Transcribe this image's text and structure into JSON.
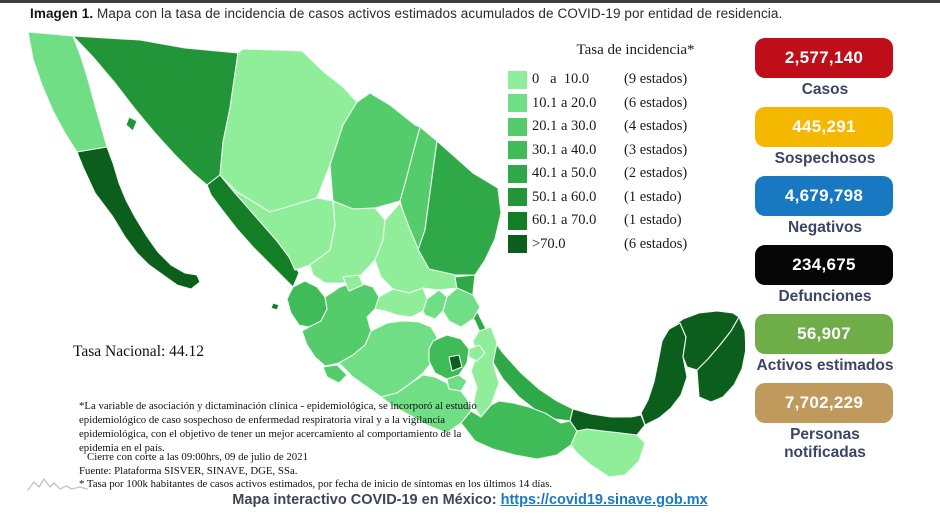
{
  "page": {
    "title_bold": "Imagen 1.",
    "title_rest": " Mapa con la tasa de incidencia de casos activos estimados acumulados de COVID-19 por entidad de residencia."
  },
  "legend": {
    "title": "Tasa de incidencia*",
    "rows": [
      {
        "range": "0   a  10.0",
        "count": "(9 estados)",
        "color": "#90ee9b"
      },
      {
        "range": "10.1 a 20.0",
        "count": "(6 estados)",
        "color": "#70de84"
      },
      {
        "range": "20.1 a 30.0",
        "count": "(4 estados)",
        "color": "#55cc6c"
      },
      {
        "range": "30.1 a 40.0",
        "count": "(3 estados)",
        "color": "#3fbb58"
      },
      {
        "range": "40.1 a 50.0",
        "count": "(2 estados)",
        "color": "#2fa948"
      },
      {
        "range": "50.1 a 60.0",
        "count": "(1 estado)",
        "color": "#219537"
      },
      {
        "range": "60.1 a 70.0",
        "count": "(1 estado)",
        "color": "#147e26"
      },
      {
        "range": ">70.0",
        "count": "(6 estados)",
        "color": "#0b5e1b"
      }
    ]
  },
  "map": {
    "tasa_nacional": "Tasa Nacional: 44.12",
    "footnote_lines": "*La variable de asociación y dictaminación clínica - epidemiológica, se incorporó al estudio epidemiológico de caso sospechoso de enfermedad respiratoria viral y a la vigilancia epidemiológica, con el objetivo de tener un mejor acercamiento al comportamiento de la epidemia en el país.",
    "cutoff_line": "Cierre con corte a las 09:00hrs, 09 de julio de 2021",
    "source_line": "Fuente: Plataforma SISVER, SINAVE, DGE, SSa.",
    "rate_note_line": "* Tasa por 100k habitantes de casos activos estimados, por fecha de inicio de síntomas en los últimos 14 días.",
    "border_color": "#f2fbf2",
    "states": [
      {
        "id": "sonora",
        "level": 6
      },
      {
        "id": "baja-california",
        "level": 2
      },
      {
        "id": "baja-california-sur",
        "level": 8
      },
      {
        "id": "chihuahua",
        "level": 1
      },
      {
        "id": "coahuila",
        "level": 3
      },
      {
        "id": "nuevo-leon",
        "level": 3
      },
      {
        "id": "tamaulipas",
        "level": 5
      },
      {
        "id": "sinaloa",
        "level": 7
      },
      {
        "id": "durango",
        "level": 1
      },
      {
        "id": "zacatecas",
        "level": 1
      },
      {
        "id": "san-luis-potosi",
        "level": 1
      },
      {
        "id": "veracruz",
        "level": 5
      },
      {
        "id": "nayarit",
        "level": 4
      },
      {
        "id": "jalisco",
        "level": 3
      },
      {
        "id": "guanajuato",
        "level": 1
      },
      {
        "id": "queretaro",
        "level": 2
      },
      {
        "id": "hidalgo",
        "level": 2
      },
      {
        "id": "michoacan",
        "level": 2
      },
      {
        "id": "guerrero",
        "level": 2
      },
      {
        "id": "puebla",
        "level": 1
      },
      {
        "id": "oaxaca",
        "level": 4
      },
      {
        "id": "chiapas",
        "level": 1
      },
      {
        "id": "tabasco",
        "level": 8
      },
      {
        "id": "campeche",
        "level": 8
      },
      {
        "id": "yucatan",
        "level": 8
      },
      {
        "id": "quintana-roo",
        "level": 8
      },
      {
        "id": "estado-de-mexico",
        "level": 4
      },
      {
        "id": "morelos",
        "level": 2
      },
      {
        "id": "tlaxcala",
        "level": 1
      },
      {
        "id": "ciudad-de-mexico",
        "level": 8
      },
      {
        "id": "aguascalientes",
        "level": 1
      },
      {
        "id": "colima",
        "level": 3
      },
      {
        "id": "isla-tiburon",
        "level": 6
      },
      {
        "id": "islas-marias",
        "level": 7
      }
    ]
  },
  "stats": [
    {
      "value": "2,577,140",
      "label": "Casos",
      "color": "#c00d1a"
    },
    {
      "value": "445,291",
      "label": "Sospechosos",
      "color": "#f4b800"
    },
    {
      "value": "4,679,798",
      "label": "Negativos",
      "color": "#1878c2"
    },
    {
      "value": "234,675",
      "label": "Defunciones",
      "color": "#060606"
    },
    {
      "value": "56,907",
      "label": "Activos estimados",
      "color": "#6fad49"
    },
    {
      "value": "7,702,229",
      "label": "Personas notificadas",
      "color": "#bf9a5c"
    }
  ],
  "footer": {
    "text": "Mapa interactivo COVID-19 en México: ",
    "link": "https://covid19.sinave.gob.mx"
  },
  "chart_data": {
    "type": "heatmap",
    "title": "Tasa de incidencia de casos activos estimados acumulados de COVID-19 por entidad de residencia",
    "national_rate": 44.12,
    "bins": [
      "0 a 10.0",
      "10.1 a 20.0",
      "20.1 a 30.0",
      "30.1 a 40.0",
      "40.1 a 50.0",
      "50.1 a 60.0",
      "60.1 a 70.0",
      ">70.0"
    ],
    "bin_state_counts": [
      9,
      6,
      4,
      3,
      2,
      1,
      1,
      6
    ],
    "totals": {
      "casos": 2577140,
      "sospechosos": 445291,
      "negativos": 4679798,
      "defunciones": 234675,
      "activos_estimados": 56907,
      "personas_notificadas": 7702229
    },
    "cutoff": "09:00hrs, 09 de julio de 2021",
    "source": "Plataforma SISVER, SINAVE, DGE, SSa."
  }
}
